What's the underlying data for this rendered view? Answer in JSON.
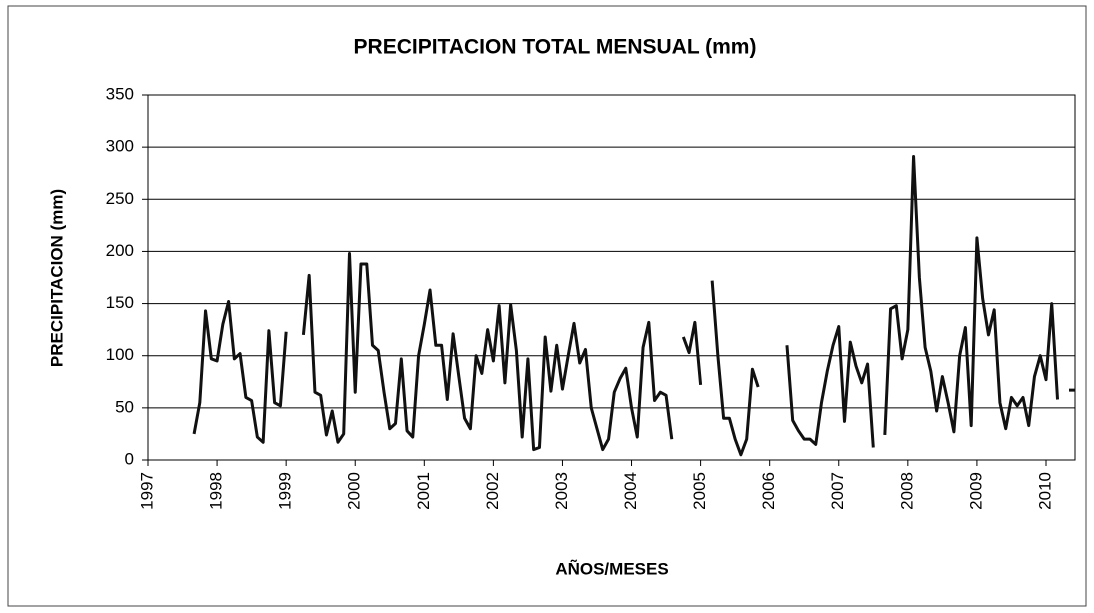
{
  "chart_data": {
    "type": "line",
    "title": "PRECIPITACION TOTAL MENSUAL (mm)",
    "x_label": "AÑOS/MESES",
    "y_label": "PRECIPITACION (mm)",
    "xlim": [
      1997,
      2010.42
    ],
    "xticks": [
      1997,
      1998,
      1999,
      2000,
      2001,
      2002,
      2003,
      2004,
      2005,
      2006,
      2007,
      2008,
      2009,
      2010
    ],
    "ylim": [
      0,
      350
    ],
    "yticks": [
      0,
      50,
      100,
      150,
      200,
      250,
      300,
      350
    ],
    "grid": true,
    "series": [
      {
        "name": "Precipitación",
        "color": "#111111",
        "x": [
          1997.667,
          1997.75,
          1997.833,
          1997.917,
          1998.0,
          1998.083,
          1998.167,
          1998.25,
          1998.333,
          1998.417,
          1998.5,
          1998.583,
          1998.667,
          1998.75,
          1998.833,
          1998.917,
          1999.0,
          1999.083,
          1999.167,
          1999.25,
          1999.333,
          1999.417,
          1999.5,
          1999.583,
          1999.667,
          1999.75,
          1999.833,
          1999.917,
          2000.0,
          2000.083,
          2000.167,
          2000.25,
          2000.333,
          2000.417,
          2000.5,
          2000.583,
          2000.667,
          2000.75,
          2000.833,
          2000.917,
          2001.0,
          2001.083,
          2001.167,
          2001.25,
          2001.333,
          2001.417,
          2001.5,
          2001.583,
          2001.667,
          2001.75,
          2001.833,
          2001.917,
          2002.0,
          2002.083,
          2002.167,
          2002.25,
          2002.333,
          2002.417,
          2002.5,
          2002.583,
          2002.667,
          2002.75,
          2002.833,
          2002.917,
          2003.0,
          2003.083,
          2003.167,
          2003.25,
          2003.333,
          2003.417,
          2003.5,
          2003.583,
          2003.667,
          2003.75,
          2003.833,
          2003.917,
          2004.0,
          2004.083,
          2004.167,
          2004.25,
          2004.333,
          2004.417,
          2004.5,
          2004.583,
          2004.667,
          2004.75,
          2004.833,
          2004.917,
          2005.0,
          2005.083,
          2005.167,
          2005.25,
          2005.333,
          2005.417,
          2005.5,
          2005.583,
          2005.667,
          2005.75,
          2005.833,
          2005.917,
          2006.0,
          2006.083,
          2006.167,
          2006.25,
          2006.333,
          2006.417,
          2006.5,
          2006.583,
          2006.667,
          2006.75,
          2006.833,
          2006.917,
          2007.0,
          2007.083,
          2007.167,
          2007.25,
          2007.333,
          2007.417,
          2007.5,
          2007.583,
          2007.667,
          2007.75,
          2007.833,
          2007.917,
          2008.0,
          2008.083,
          2008.167,
          2008.25,
          2008.333,
          2008.417,
          2008.5,
          2008.583,
          2008.667,
          2008.75,
          2008.833,
          2008.917,
          2009.0,
          2009.083,
          2009.167,
          2009.25,
          2009.333,
          2009.417,
          2009.5,
          2009.583,
          2009.667,
          2009.75,
          2009.833,
          2009.917,
          2010.0,
          2010.083,
          2010.167,
          2010.25,
          2010.333,
          2010.417
        ],
        "values": [
          25,
          55,
          143,
          97,
          95,
          130,
          152,
          97,
          102,
          60,
          57,
          22,
          17,
          124,
          55,
          52,
          123,
          null,
          null,
          120,
          177,
          65,
          62,
          24,
          47,
          17,
          25,
          198,
          65,
          188,
          188,
          110,
          105,
          65,
          30,
          35,
          97,
          28,
          22,
          100,
          130,
          163,
          110,
          110,
          58,
          121,
          80,
          40,
          30,
          100,
          83,
          125,
          95,
          148,
          74,
          149,
          105,
          22,
          97,
          10,
          12,
          118,
          66,
          110,
          68,
          100,
          131,
          93,
          106,
          50,
          30,
          10,
          20,
          65,
          78,
          88,
          50,
          22,
          108,
          132,
          57,
          65,
          62,
          20,
          null,
          118,
          103,
          132,
          72,
          null,
          172,
          100,
          40,
          40,
          20,
          5,
          20,
          87,
          70,
          null,
          null,
          null,
          null,
          110,
          38,
          28,
          20,
          20,
          15,
          55,
          85,
          110,
          128,
          37,
          113,
          90,
          74,
          92,
          12,
          null,
          24,
          145,
          148,
          97,
          125,
          291,
          175,
          108,
          85,
          47,
          80,
          55,
          27,
          100,
          127,
          33,
          213,
          155,
          120,
          144,
          55,
          30,
          60,
          52,
          60,
          33,
          80,
          100,
          77,
          150,
          58,
          null,
          67,
          67
        ]
      }
    ]
  }
}
